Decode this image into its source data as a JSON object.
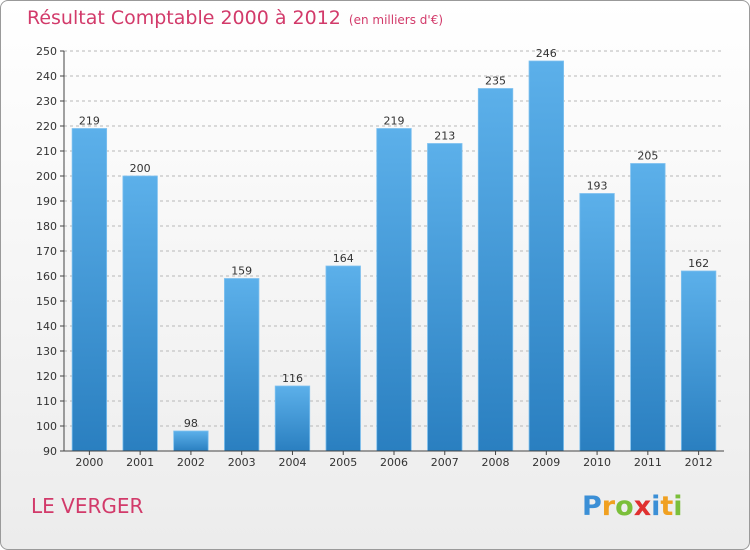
{
  "title": "Résultat Comptable 2000 à 2012",
  "subtitle": "(en milliers d'€)",
  "commune": "LE VERGER",
  "logo": {
    "letters": [
      {
        "ch": "P",
        "color": "#3b8fd6"
      },
      {
        "ch": "r",
        "color": "#f0a020"
      },
      {
        "ch": "o",
        "color": "#7bbf3a"
      },
      {
        "ch": "x",
        "color": "#e0302f"
      },
      {
        "ch": "i",
        "color": "#3b8fd6"
      },
      {
        "ch": "t",
        "color": "#f0a020"
      },
      {
        "ch": "i",
        "color": "#7bbf3a"
      }
    ]
  },
  "colors": {
    "bar_top": "#5cb0ea",
    "bar_bottom": "#2a7fc0",
    "axis": "#444444",
    "grid": "#b8b8b8",
    "accent": "#d23a6a"
  },
  "chart_data": {
    "type": "bar",
    "title": "Résultat Comptable 2000 à 2012",
    "subtitle": "(en milliers d'€)",
    "categories": [
      "2000",
      "2001",
      "2002",
      "2003",
      "2004",
      "2005",
      "2006",
      "2007",
      "2008",
      "2009",
      "2010",
      "2011",
      "2012"
    ],
    "values": [
      219,
      200,
      98,
      159,
      116,
      164,
      219,
      213,
      235,
      246,
      193,
      205,
      162
    ],
    "ylim": [
      90,
      250
    ],
    "yticks": [
      90,
      100,
      110,
      120,
      130,
      140,
      150,
      160,
      170,
      180,
      190,
      200,
      210,
      220,
      230,
      240,
      250
    ],
    "grid": "horizontal dashed",
    "xlabel": "",
    "ylabel": ""
  }
}
